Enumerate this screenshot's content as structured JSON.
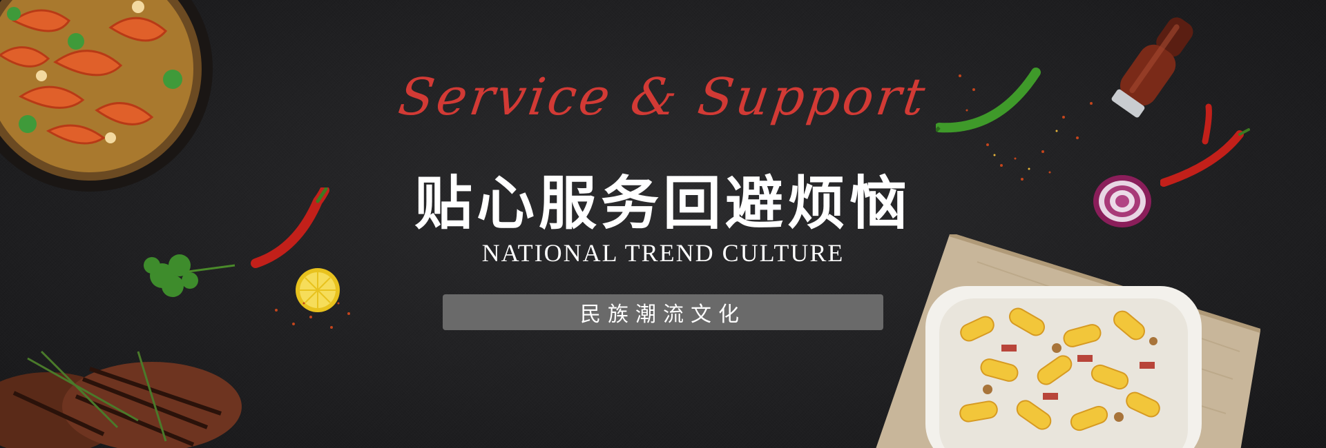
{
  "banner": {
    "script_title": "Service & Support",
    "cn_title": "贴心服务回避烦恼",
    "en_subtitle": "NATIONAL TREND CULTURE",
    "pill_text": "民族潮流文化"
  },
  "decorations": [
    "shrimp-pan-icon",
    "steak-icon",
    "cilantro-icon",
    "chili-pepper-icon",
    "lemon-slice-icon",
    "pepper-grinder-icon",
    "green-chili-icon",
    "red-onion-icon",
    "pasta-bowl-icon",
    "napkin-icon"
  ],
  "colors": {
    "background": "#222224",
    "accent_red": "#d23a35",
    "pill": "#6a6a6a",
    "text": "#ffffff"
  }
}
